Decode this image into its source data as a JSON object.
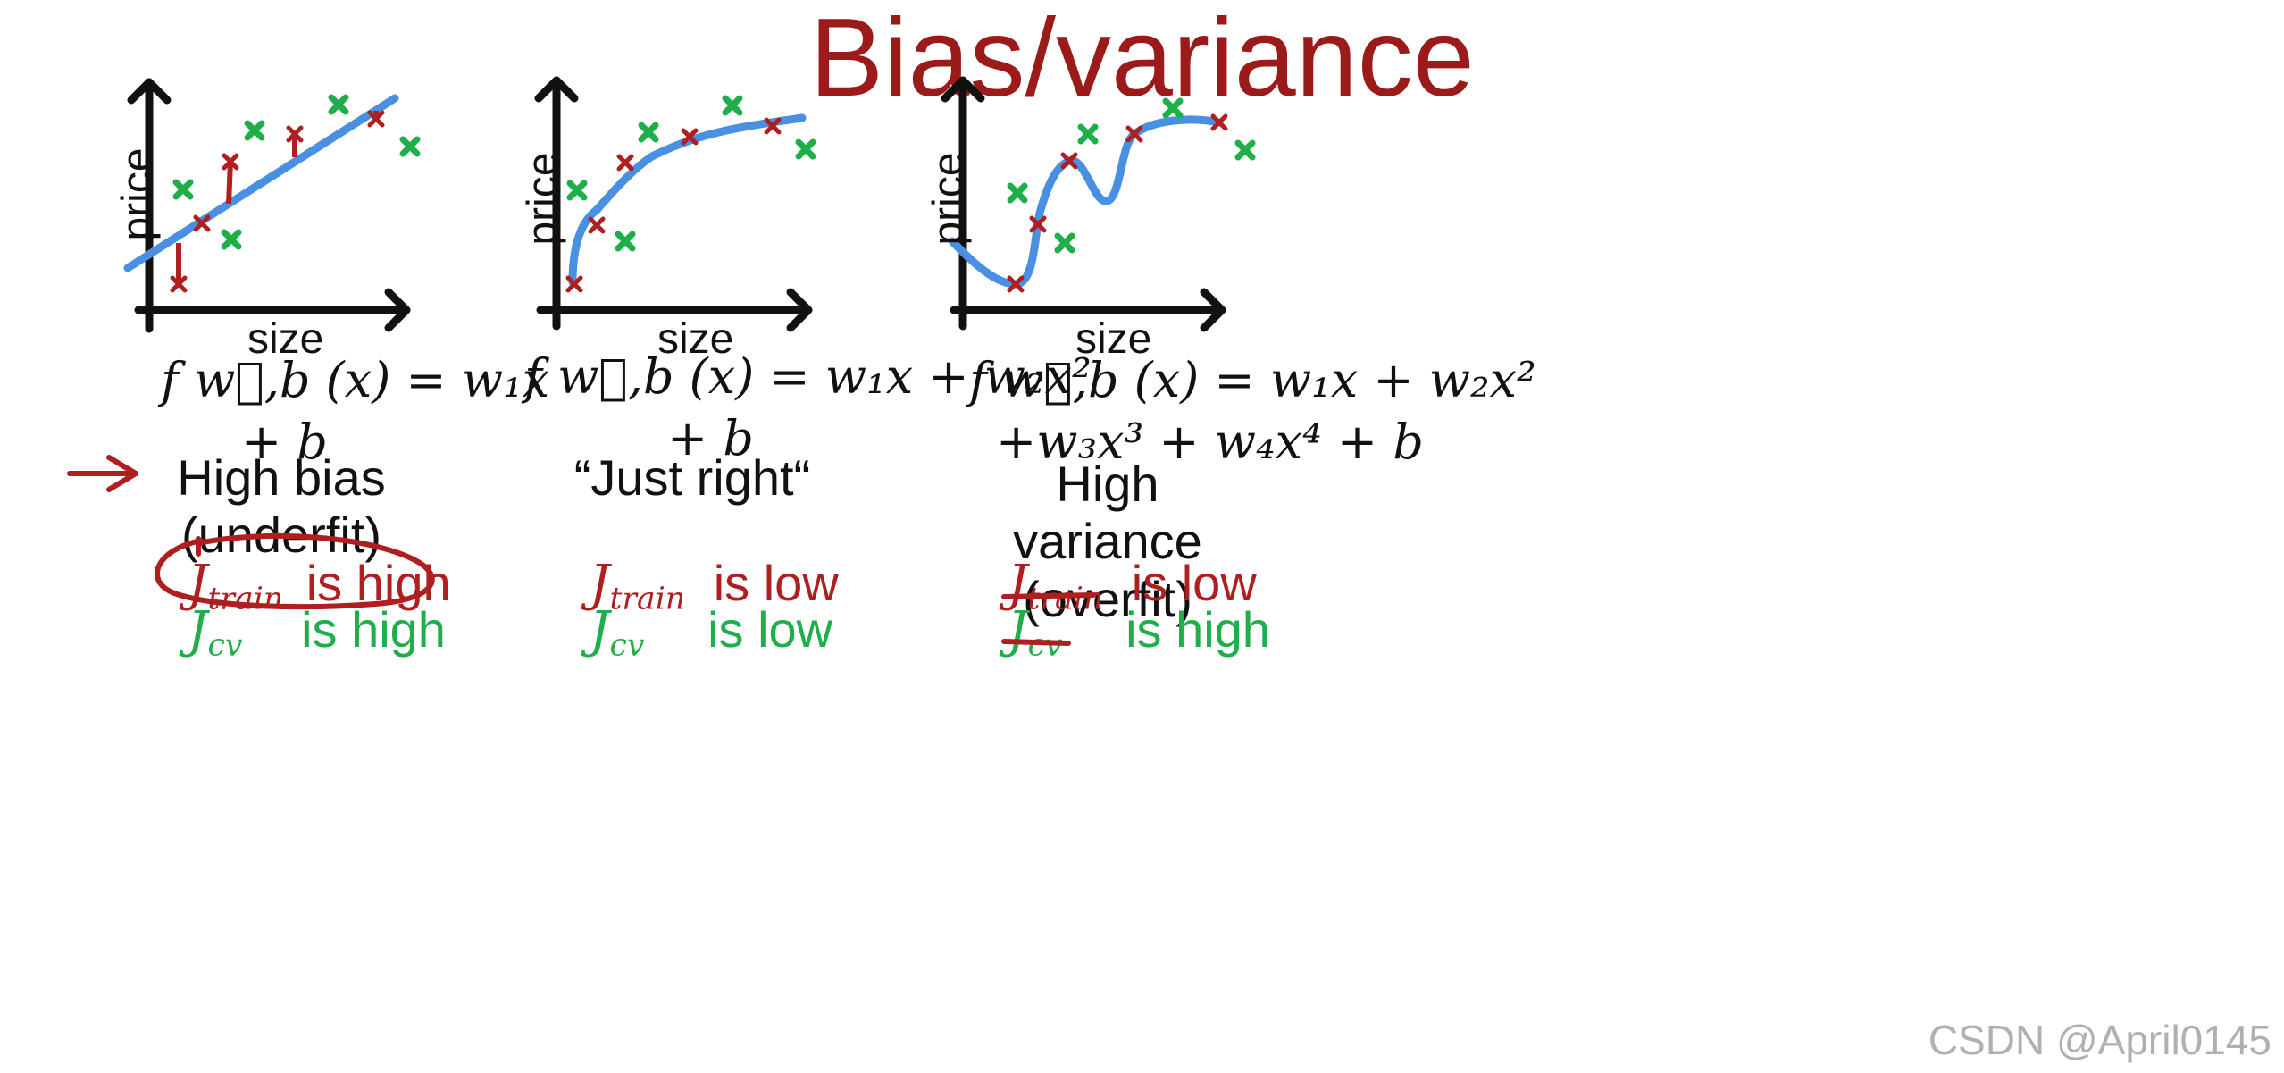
{
  "title": "Bias/variance",
  "colors": {
    "title": "#9b1b1b",
    "fit_line": "#4a90e2",
    "train_point": "#b01f1f",
    "cv_point": "#1fae4a",
    "axis": "#111111"
  },
  "panels": [
    {
      "id": "high-bias",
      "xlabel": "size",
      "ylabel": "price",
      "formula_line1": "f w⃗,b (x) = w₁x",
      "formula_line2": "+ b",
      "caption_line1": "High bias",
      "caption_line2": "(underfit)",
      "jtrain_symbol": "J",
      "jtrain_sub": "train",
      "jtrain_text": "is high",
      "jcv_symbol": "J",
      "jcv_sub": "cv",
      "jcv_text": "is high"
    },
    {
      "id": "just-right",
      "xlabel": "size",
      "ylabel": "price",
      "formula_line1": "f w⃗,b (x) = w₁x + w₂x²",
      "formula_line2": "+ b",
      "caption_line1": "“Just right“",
      "caption_line2": "",
      "jtrain_symbol": "J",
      "jtrain_sub": "train",
      "jtrain_text": "is low",
      "jcv_symbol": "J",
      "jcv_sub": "cv",
      "jcv_text": "is low"
    },
    {
      "id": "high-variance",
      "xlabel": "size",
      "ylabel": "price",
      "formula_line1": "f w⃗,b (x) = w₁x + w₂x²",
      "formula_line2": "+w₃x³ + w₄x⁴ + b",
      "caption_line1": "High variance",
      "caption_line2": "(overfit)",
      "jtrain_symbol": "J",
      "jtrain_sub": "train",
      "jtrain_text": "is low",
      "jcv_symbol": "J",
      "jcv_sub": "cv",
      "jcv_text": "is high"
    }
  ],
  "watermark": "CSDN @April0145"
}
